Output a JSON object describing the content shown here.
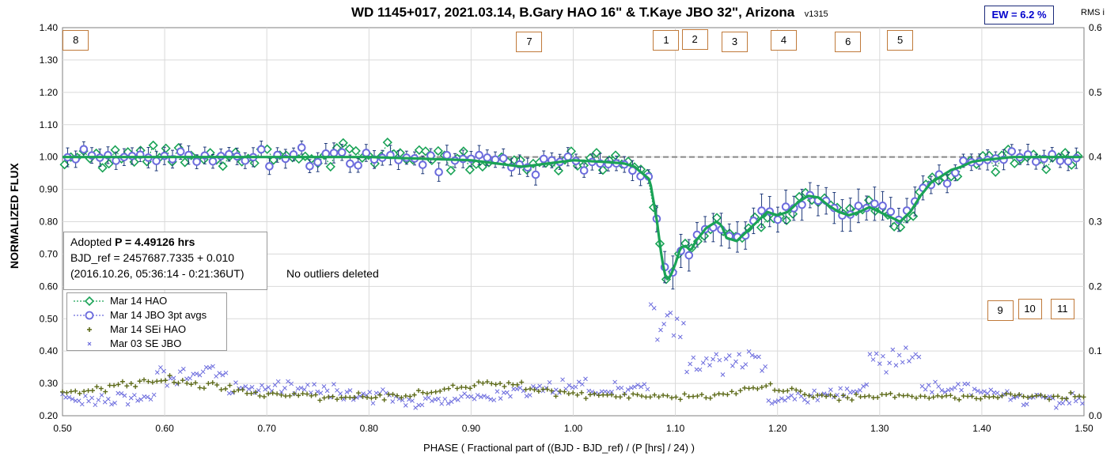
{
  "header": {
    "title": "WD 1145+017, 2021.03.14, B.Gary HAO 16\" & T.Kaye JBO 32\", Arizona",
    "version": "v1315",
    "ew": "EW = 6.2 %",
    "rms_axis_label": "RMS i"
  },
  "info": {
    "line1_prefix": "Adopted ",
    "line1_bold": "P = 4.49126 hrs",
    "line2": "BJD_ref = 2457687.7335 + 0.010",
    "line3": "(2016.10.26, 05:36:14 - 0:21:36UT)"
  },
  "note": "No outliers deleted",
  "colors": {
    "hao": "#1aa356",
    "jbo": "#6b6bdd",
    "sei_hao": "#5e6b1a",
    "se_jbo": "#6b6bdd",
    "model": "#1aa356",
    "reference": "#888888",
    "ew_text": "#0000cc",
    "feature_box": "#c07a3a"
  },
  "chart_data": {
    "type": "scatter",
    "xlabel": "PHASE ( Fractional part of ((BJD - BJD_ref) / (P [hrs] / 24) )",
    "ylabel": "NORMALIZED FLUX",
    "xlim": [
      0.5,
      1.5
    ],
    "ylim": [
      0.2,
      1.4
    ],
    "y2lim": [
      0.0,
      0.6
    ],
    "x_ticks": [
      "0.50",
      "0.60",
      "0.70",
      "0.80",
      "0.90",
      "1.00",
      "1.10",
      "1.20",
      "1.30",
      "1.40",
      "1.50"
    ],
    "y_ticks": [
      "0.20",
      "0.30",
      "0.40",
      "0.50",
      "0.60",
      "0.70",
      "0.80",
      "0.90",
      "1.00",
      "1.10",
      "1.20",
      "1.30",
      "1.40"
    ],
    "y2_ticks": [
      "0.0",
      "0.1",
      "0.2",
      "0.3",
      "0.4",
      "0.5",
      "0.6"
    ],
    "grid": true,
    "legend_position": "lower-left",
    "reference_level": 1.0,
    "feature_labels": [
      {
        "label": "8",
        "x": 0.513,
        "y": 1.362
      },
      {
        "label": "7",
        "x": 0.957,
        "y": 1.357
      },
      {
        "label": "1",
        "x": 1.091,
        "y": 1.362
      },
      {
        "label": "2",
        "x": 1.119,
        "y": 1.364
      },
      {
        "label": "3",
        "x": 1.158,
        "y": 1.357
      },
      {
        "label": "4",
        "x": 1.206,
        "y": 1.362
      },
      {
        "label": "6",
        "x": 1.269,
        "y": 1.355
      },
      {
        "label": "5",
        "x": 1.32,
        "y": 1.362
      },
      {
        "label": "9",
        "x": 1.418,
        "y": 0.526
      },
      {
        "label": "10",
        "x": 1.447,
        "y": 0.531
      },
      {
        "label": "11",
        "x": 1.479,
        "y": 0.531
      }
    ],
    "model": {
      "x": [
        0.5,
        0.52,
        0.55,
        0.6,
        0.7,
        0.8,
        0.9,
        0.95,
        1.0,
        1.03,
        1.05,
        1.06,
        1.075,
        1.082,
        1.087,
        1.091,
        1.095,
        1.1,
        1.105,
        1.11,
        1.115,
        1.12,
        1.13,
        1.14,
        1.145,
        1.15,
        1.16,
        1.17,
        1.18,
        1.19,
        1.2,
        1.21,
        1.22,
        1.23,
        1.24,
        1.25,
        1.26,
        1.27,
        1.28,
        1.29,
        1.3,
        1.31,
        1.32,
        1.33,
        1.34,
        1.35,
        1.36,
        1.37,
        1.38,
        1.39,
        1.4,
        1.43,
        1.45,
        1.5
      ],
      "y": [
        1.0,
        1.0,
        1.0,
        1.0,
        1.0,
        1.0,
        0.99,
        0.97,
        0.99,
        0.985,
        0.98,
        0.97,
        0.93,
        0.8,
        0.68,
        0.62,
        0.63,
        0.67,
        0.72,
        0.725,
        0.71,
        0.74,
        0.78,
        0.8,
        0.79,
        0.75,
        0.74,
        0.77,
        0.8,
        0.83,
        0.82,
        0.83,
        0.86,
        0.88,
        0.875,
        0.85,
        0.83,
        0.82,
        0.83,
        0.845,
        0.83,
        0.815,
        0.8,
        0.83,
        0.88,
        0.92,
        0.94,
        0.96,
        0.97,
        0.985,
        0.99,
        1.0,
        1.0,
        1.0
      ]
    },
    "series": [
      {
        "name": "Mar 14 HAO",
        "marker": "diamond"
      },
      {
        "name": "Mar 14 JBO 3pt avgs",
        "marker": "circle"
      },
      {
        "name": "Mar 14 SEi HAO",
        "marker": "plus",
        "axis": "right"
      },
      {
        "name": "Mar 03 SE JBO",
        "marker": "x",
        "axis": "right"
      }
    ]
  }
}
